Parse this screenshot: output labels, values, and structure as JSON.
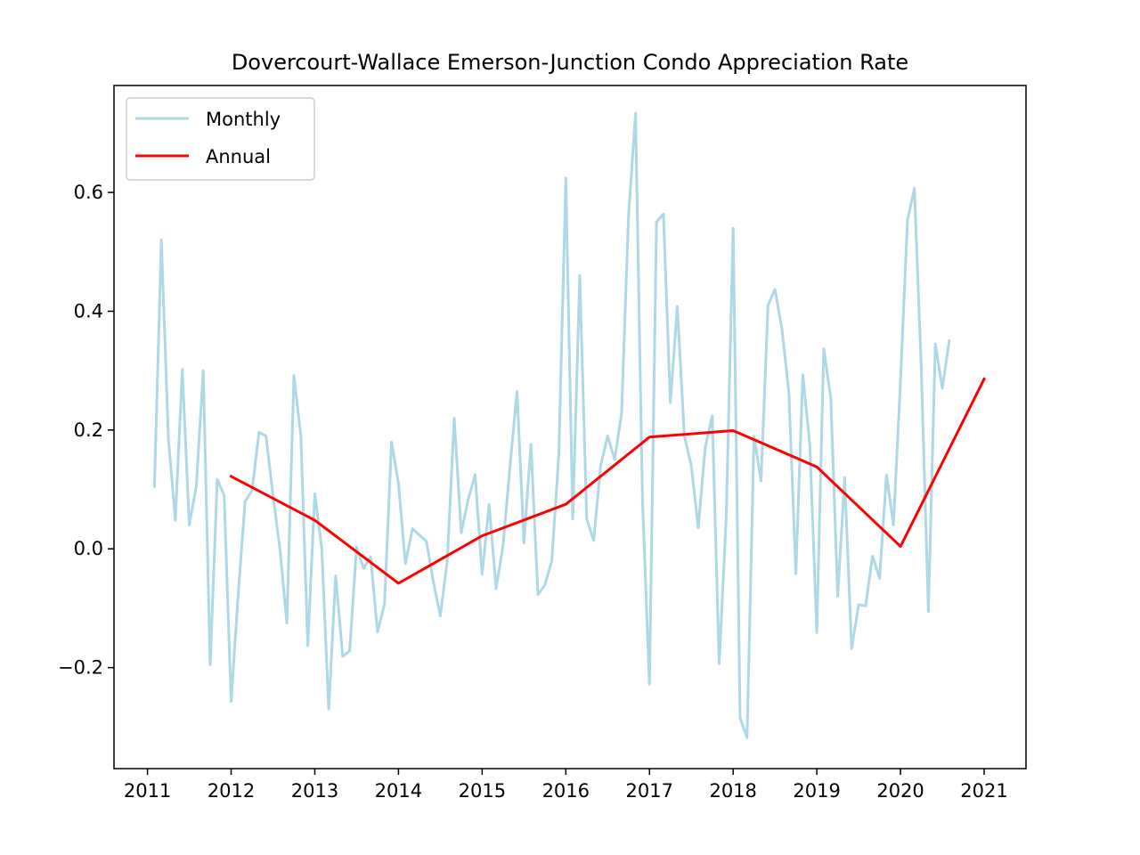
{
  "chart_data": {
    "type": "line",
    "title": "Dovercourt-Wallace Emerson-Junction Condo Appreciation Rate",
    "xlabel": "",
    "ylabel": "",
    "xlim": [
      2010.6,
      2021.5
    ],
    "ylim": [
      -0.37,
      0.78
    ],
    "x_ticks": [
      2011,
      2012,
      2013,
      2014,
      2015,
      2016,
      2017,
      2018,
      2019,
      2020,
      2021
    ],
    "y_ticks": [
      -0.2,
      0.0,
      0.2,
      0.4,
      0.6
    ],
    "y_tick_labels": [
      "−0.2",
      "0.0",
      "0.2",
      "0.4",
      "0.6"
    ],
    "grid": false,
    "legend_position": "top-left",
    "series": [
      {
        "name": "Monthly",
        "color": "#add8e6",
        "x_start": 2011.0833,
        "x_step": 0.08333,
        "values": [
          0.105,
          0.52,
          0.185,
          0.048,
          0.302,
          0.04,
          0.105,
          0.3,
          -0.195,
          0.117,
          0.09,
          -0.257,
          -0.08,
          0.08,
          0.098,
          0.196,
          0.19,
          0.09,
          0.0,
          -0.125,
          0.292,
          0.19,
          -0.163,
          0.093,
          0.0,
          -0.27,
          -0.045,
          -0.181,
          -0.172,
          0.003,
          -0.033,
          -0.013,
          -0.14,
          -0.093,
          0.18,
          0.11,
          -0.025,
          0.034,
          0.023,
          0.013,
          -0.055,
          -0.113,
          -0.02,
          0.22,
          0.027,
          0.083,
          0.125,
          -0.043,
          0.075,
          -0.067,
          0.005,
          0.14,
          0.265,
          0.01,
          0.176,
          -0.077,
          -0.061,
          -0.02,
          0.16,
          0.624,
          0.05,
          0.46,
          0.05,
          0.014,
          0.14,
          0.19,
          0.15,
          0.228,
          0.56,
          0.733,
          0.08,
          -0.228,
          0.55,
          0.564,
          0.246,
          0.408,
          0.19,
          0.14,
          0.035,
          0.17,
          0.224,
          -0.193,
          0.048,
          0.54,
          -0.285,
          -0.318,
          0.19,
          0.114,
          0.41,
          0.437,
          0.37,
          0.262,
          -0.042,
          0.293,
          0.175,
          -0.141,
          0.337,
          0.254,
          -0.08,
          0.12,
          -0.168,
          -0.094,
          -0.096,
          -0.012,
          -0.05,
          0.124,
          0.04,
          0.28,
          0.553,
          0.607,
          0.3,
          -0.105,
          0.345,
          0.27,
          0.35
        ]
      },
      {
        "name": "Annual",
        "color": "#ff0000",
        "x": [
          2012,
          2013,
          2014,
          2015,
          2016,
          2017,
          2018,
          2019,
          2020,
          2021
        ],
        "values": [
          0.122,
          0.048,
          -0.058,
          0.022,
          0.075,
          0.188,
          0.199,
          0.138,
          0.004,
          0.286
        ]
      }
    ]
  }
}
